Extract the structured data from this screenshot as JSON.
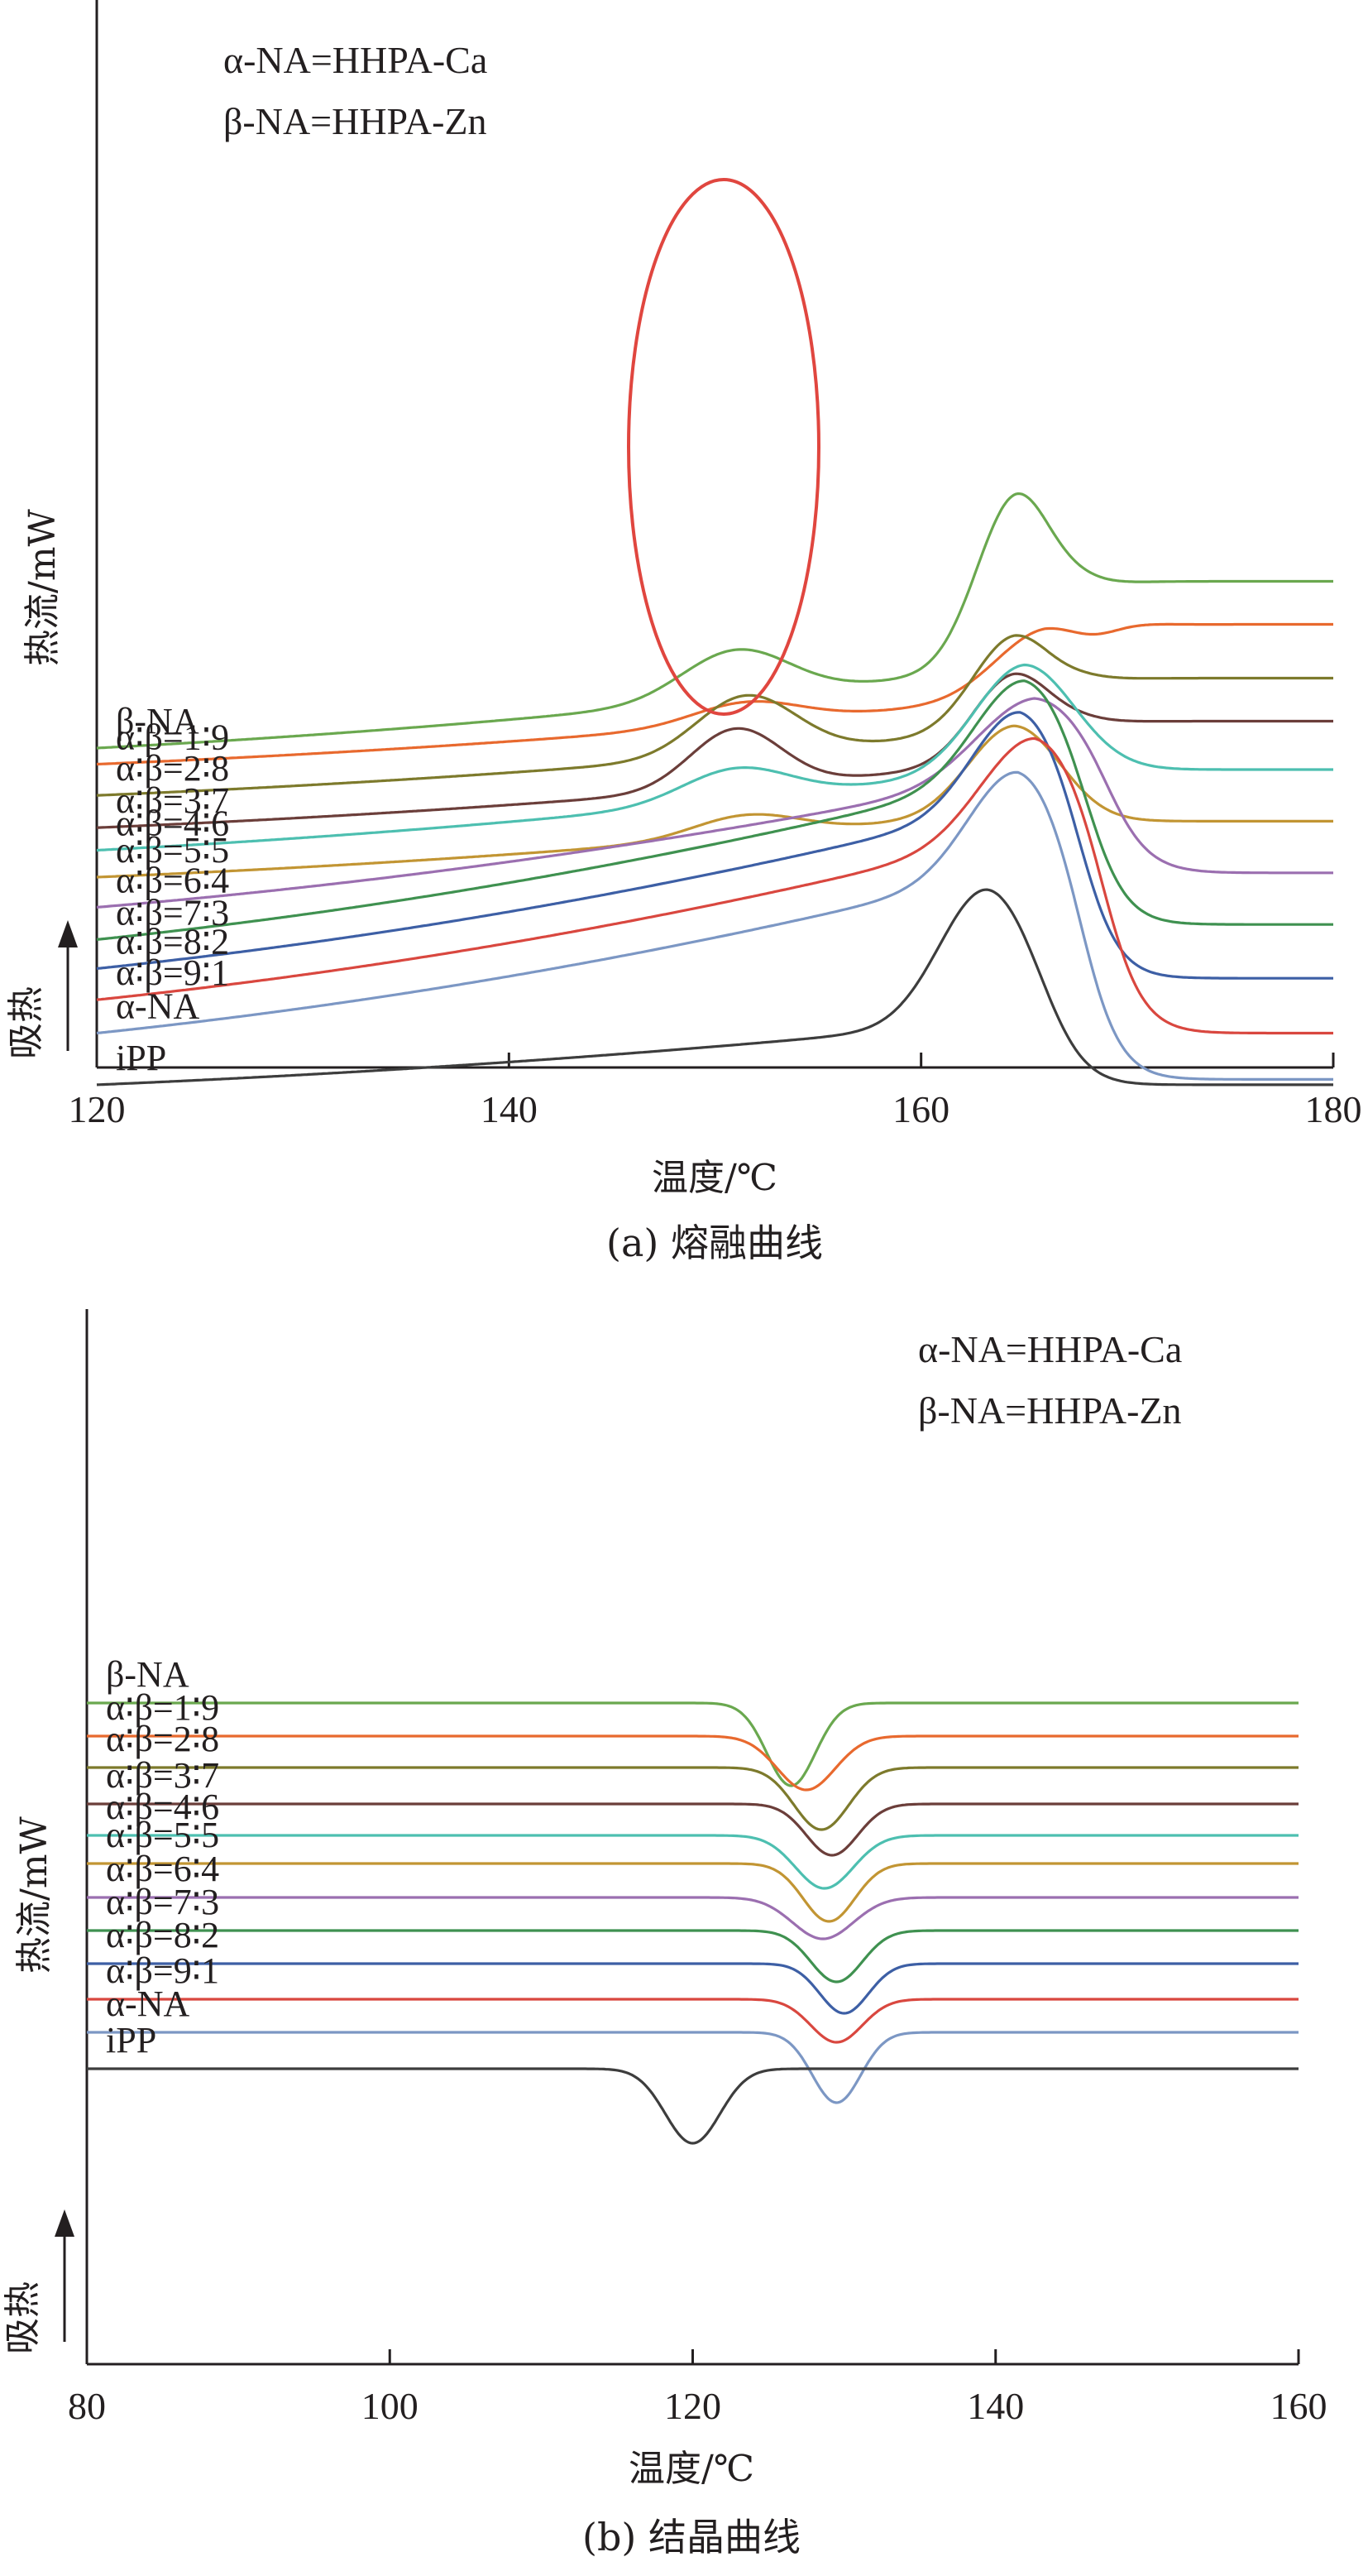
{
  "chart_data": [
    {
      "type": "line",
      "caption": "(a) 熔融曲线",
      "xlabel": "温度/℃",
      "ylabel": "热流/mW",
      "y_arrow_label": "吸热",
      "xlim": [
        120,
        180
      ],
      "xticks": [
        120,
        140,
        160,
        180
      ],
      "annotations": [
        "α-NA=HHPA-Ca",
        "β-NA=HHPA-Zn"
      ],
      "series": [
        {
          "label": "β-NA",
          "color": "#6aa84f",
          "baseline": 2.2,
          "slope": 0.01,
          "end": 3.75,
          "peaks": [
            {
              "x": 151.0,
              "h": 0.45,
              "w": 2.6
            },
            {
              "x": 164.6,
              "h": 1.55,
              "w": 1.9
            }
          ]
        },
        {
          "label": "α∶β=1∶9",
          "color": "#e8692e",
          "baseline": 2.05,
          "slope": 0.008,
          "end": 3.35,
          "peaks": [
            {
              "x": 151.5,
              "h": 0.2,
              "w": 2.6
            },
            {
              "x": 166.0,
              "h": 0.6,
              "w": 2.4
            }
          ]
        },
        {
          "label": "α∶β=2∶8",
          "color": "#7d7a2c",
          "baseline": 1.76,
          "slope": 0.008,
          "end": 2.85,
          "peaks": [
            {
              "x": 151.5,
              "h": 0.55,
              "w": 2.4
            },
            {
              "x": 164.5,
              "h": 0.85,
              "w": 2.0
            }
          ]
        },
        {
          "label": "α∶β=3∶7",
          "color": "#6b3e3a",
          "baseline": 1.46,
          "slope": 0.008,
          "end": 2.45,
          "peaks": [
            {
              "x": 151.0,
              "h": 0.55,
              "w": 2.2
            },
            {
              "x": 164.5,
              "h": 0.8,
              "w": 2.0
            }
          ]
        },
        {
          "label": "α∶β=4∶6",
          "color": "#4dbfb0",
          "baseline": 1.25,
          "slope": 0.01,
          "end": 2.0,
          "peaks": [
            {
              "x": 151.0,
              "h": 0.3,
              "w": 2.6
            },
            {
              "x": 165.0,
              "h": 0.95,
              "w": 2.4
            }
          ]
        },
        {
          "label": "α∶β=5∶5",
          "color": "#c29533",
          "baseline": 1.0,
          "slope": 0.008,
          "end": 1.52,
          "peaks": [
            {
              "x": 151.5,
              "h": 0.2,
              "w": 2.6
            },
            {
              "x": 164.5,
              "h": 0.8,
              "w": 2.2
            }
          ]
        },
        {
          "label": "α∶β=6∶4",
          "color": "#9b6fb0",
          "baseline": 0.72,
          "slope": 0.016,
          "end": 1.04,
          "peaks": [
            {
              "x": 165.5,
              "h": 0.7,
              "w": 2.8
            }
          ]
        },
        {
          "label": "α∶β=7∶3",
          "color": "#3f9150",
          "baseline": 0.42,
          "slope": 0.02,
          "end": 0.56,
          "peaks": [
            {
              "x": 165.0,
              "h": 0.9,
              "w": 2.4
            }
          ]
        },
        {
          "label": "α∶β=8∶2",
          "color": "#3d5fa5",
          "baseline": 0.15,
          "slope": 0.02,
          "end": 0.06,
          "peaks": [
            {
              "x": 164.8,
              "h": 0.9,
              "w": 2.3
            }
          ]
        },
        {
          "label": "α∶β=9∶1",
          "color": "#d9473f",
          "baseline": -0.14,
          "slope": 0.02,
          "end": -0.45,
          "peaks": [
            {
              "x": 165.5,
              "h": 0.9,
              "w": 2.6
            }
          ]
        },
        {
          "label": "α-NA",
          "color": "#7c97c4",
          "baseline": -0.45,
          "slope": 0.02,
          "end": -0.88,
          "peaks": [
            {
              "x": 164.7,
              "h": 0.95,
              "w": 2.4
            }
          ]
        },
        {
          "label": "iPP",
          "color": "#3d3d3d",
          "baseline": -0.93,
          "slope": 0.008,
          "end": -0.93,
          "peaks": [
            {
              "x": 163.2,
              "h": 1.25,
              "w": 2.3
            }
          ]
        }
      ]
    },
    {
      "type": "line",
      "caption": "(b) 结晶曲线",
      "xlabel": "温度/℃",
      "ylabel": "热流/mW",
      "y_arrow_label": "吸热",
      "xlim": [
        80,
        160
      ],
      "xticks": [
        80,
        100,
        120,
        140,
        160
      ],
      "annotations": [
        "α-NA=HHPA-Ca",
        "β-NA=HHPA-Zn"
      ],
      "series": [
        {
          "label": "β-NA",
          "color": "#6aa84f",
          "baseline": 2.0,
          "dip": {
            "x": 126.5,
            "d": 1.0,
            "w": 1.6
          }
        },
        {
          "label": "α∶β=1∶9",
          "color": "#e8692e",
          "baseline": 1.6,
          "dip": {
            "x": 127.5,
            "d": 0.65,
            "w": 1.9
          }
        },
        {
          "label": "α∶β=2∶8",
          "color": "#7d7a2c",
          "baseline": 1.22,
          "dip": {
            "x": 128.5,
            "d": 0.75,
            "w": 1.8
          }
        },
        {
          "label": "α∶β=3∶7",
          "color": "#6b3e3a",
          "baseline": 0.78,
          "dip": {
            "x": 129.2,
            "d": 0.62,
            "w": 1.7
          }
        },
        {
          "label": "α∶β=4∶6",
          "color": "#4dbfb0",
          "baseline": 0.4,
          "dip": {
            "x": 128.7,
            "d": 0.64,
            "w": 1.9
          }
        },
        {
          "label": "α∶β=5∶5",
          "color": "#c29533",
          "baseline": 0.06,
          "dip": {
            "x": 129.0,
            "d": 0.7,
            "w": 1.7
          }
        },
        {
          "label": "α∶β=6∶4",
          "color": "#9b6fb0",
          "baseline": -0.35,
          "dip": {
            "x": 128.6,
            "d": 0.5,
            "w": 2.0
          }
        },
        {
          "label": "α∶β=7∶3",
          "color": "#3f9150",
          "baseline": -0.75,
          "dip": {
            "x": 129.5,
            "d": 0.62,
            "w": 1.7
          }
        },
        {
          "label": "α∶β=8∶2",
          "color": "#3d5fa5",
          "baseline": -1.15,
          "dip": {
            "x": 130.0,
            "d": 0.6,
            "w": 1.6
          }
        },
        {
          "label": "α∶β=9∶1",
          "color": "#d9473f",
          "baseline": -1.58,
          "dip": {
            "x": 129.5,
            "d": 0.52,
            "w": 1.7
          }
        },
        {
          "label": "α-NA",
          "color": "#7c97c4",
          "baseline": -1.98,
          "dip": {
            "x": 129.5,
            "d": 0.85,
            "w": 1.6
          }
        },
        {
          "label": "iPP",
          "color": "#3d3d3d",
          "baseline": -2.42,
          "dip": {
            "x": 120.0,
            "d": 0.9,
            "w": 1.8
          }
        }
      ]
    }
  ]
}
